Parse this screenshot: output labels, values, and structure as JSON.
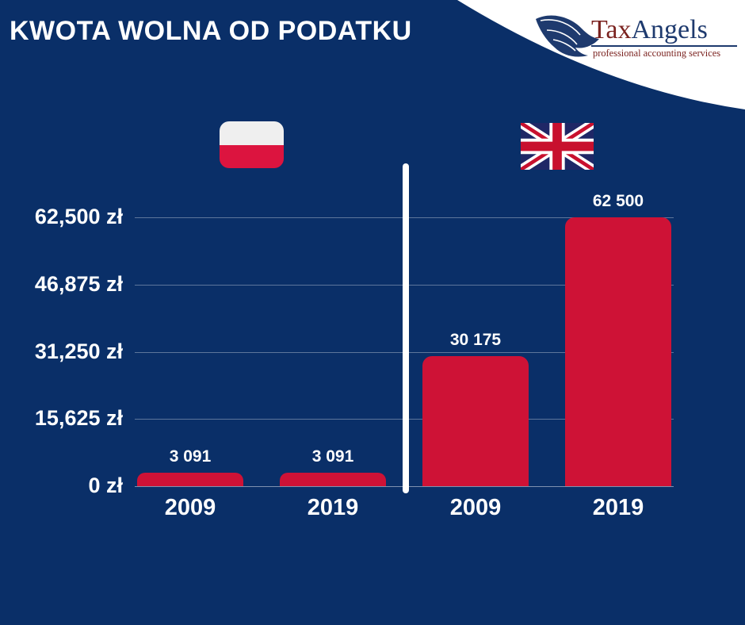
{
  "header": {
    "title": "KWOTA WOLNA OD PODATKU"
  },
  "logo": {
    "brand_tax": "Tax",
    "brand_angels": "Angels",
    "subtitle": "professional accounting services",
    "tax_color": "#7B2320",
    "angels_color": "#1E3A6E"
  },
  "colors": {
    "background": "#0A2F68",
    "bar": "#CE1236",
    "poland_flag_white": "#EFEFEF",
    "poland_flag_red": "#DC143F",
    "uk_flag_navy": "#1F2766",
    "uk_flag_red": "#C8102E",
    "gridline": "rgba(255,255,255,0.34)",
    "divider": "#FFFFFF"
  },
  "chart_data": {
    "type": "bar",
    "title": "KWOTA WOLNA OD PODATKU",
    "unit": "zł",
    "ylim": [
      0,
      62500
    ],
    "grid": true,
    "legend": "none",
    "yticks": [
      {
        "value": 0,
        "label": "0 zł"
      },
      {
        "value": 15625,
        "label": "15,625 zł"
      },
      {
        "value": 31250,
        "label": "31,250 zł"
      },
      {
        "value": 46875,
        "label": "46,875 zł"
      },
      {
        "value": 62500,
        "label": "62,500 zł"
      }
    ],
    "groups": [
      {
        "country": "Poland",
        "flag": "poland",
        "bars": [
          {
            "year": "2009",
            "value": 3091,
            "label": "3 091"
          },
          {
            "year": "2019",
            "value": 3091,
            "label": "3 091"
          }
        ]
      },
      {
        "country": "United Kingdom",
        "flag": "uk",
        "bars": [
          {
            "year": "2009",
            "value": 30175,
            "label": "30 175"
          },
          {
            "year": "2019",
            "value": 62500,
            "label": "62 500"
          }
        ]
      }
    ]
  }
}
